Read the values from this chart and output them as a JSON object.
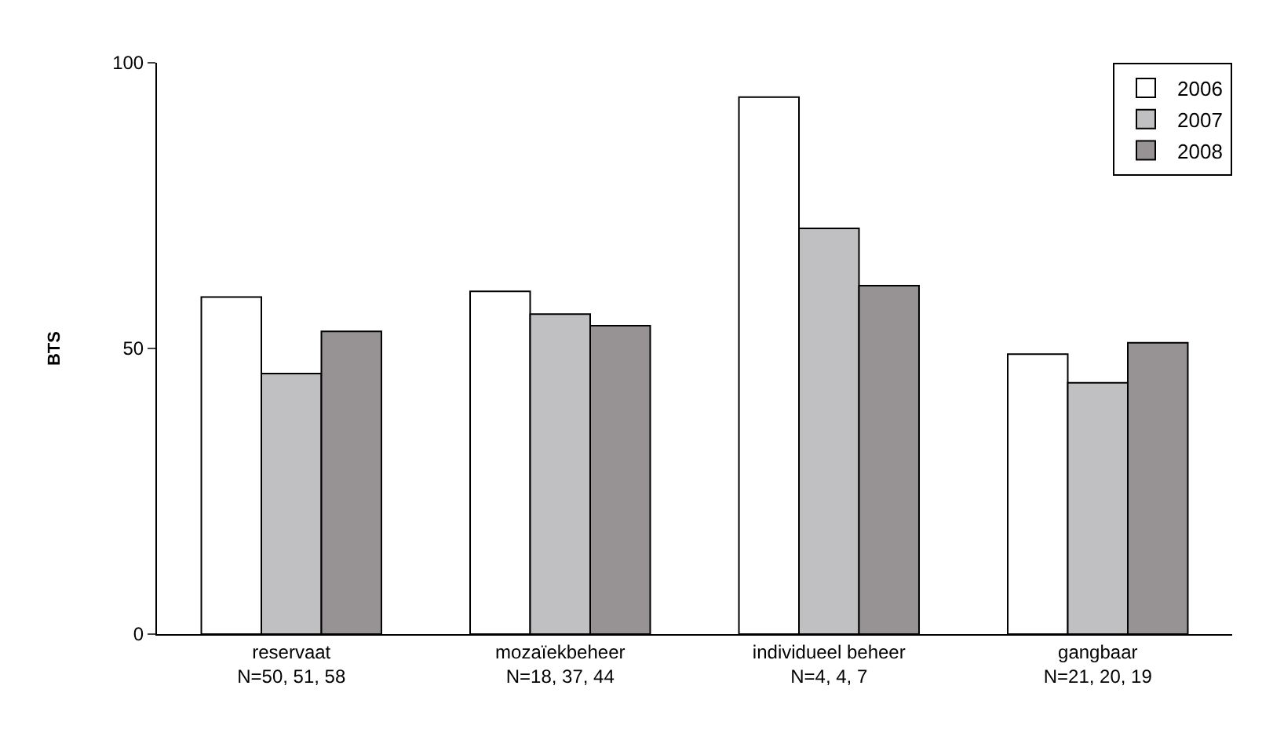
{
  "chart_data": {
    "type": "bar",
    "ylabel": "BTS",
    "categories": [
      "reservaat\nN=50, 51, 58",
      "mozaïekbeheer\nN=18, 37, 44",
      "individueel beheer\nN=4, 4, 7",
      "gangbaar\nN=21, 20, 19"
    ],
    "series": [
      {
        "name": "2006",
        "color": "#ffffff",
        "values": [
          59,
          60,
          94,
          49
        ]
      },
      {
        "name": "2007",
        "color": "#c0c0c2",
        "values": [
          45.6,
          56,
          71,
          44
        ]
      },
      {
        "name": "2008",
        "color": "#979394",
        "values": [
          53,
          54,
          61,
          51
        ]
      }
    ],
    "ylim": [
      0,
      100
    ],
    "yticks": [
      0,
      50,
      100
    ],
    "legend": "top right"
  }
}
